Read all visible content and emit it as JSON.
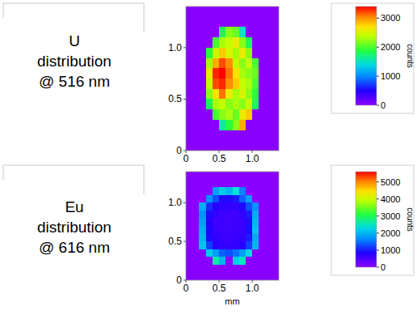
{
  "chart_data": [
    {
      "type": "heatmap",
      "title": [
        "U",
        "distribution",
        "@ 516 nm"
      ],
      "x": [
        0.05,
        0.15,
        0.25,
        0.35,
        0.45,
        0.55,
        0.65,
        0.75,
        0.85,
        0.95,
        1.05,
        1.15,
        1.25,
        1.35
      ],
      "y": [
        1.35,
        1.25,
        1.15,
        1.05,
        0.95,
        0.85,
        0.75,
        0.65,
        0.55,
        0.45,
        0.35,
        0.25,
        0.15,
        0.05
      ],
      "z": [
        [
          0,
          0,
          0,
          0,
          0,
          0,
          0,
          0,
          0,
          0,
          0,
          0,
          0,
          0
        ],
        [
          0,
          0,
          0,
          0,
          0,
          0,
          0,
          0,
          0,
          0,
          0,
          0,
          0,
          0
        ],
        [
          0,
          0,
          0,
          0,
          0,
          1800,
          2200,
          2100,
          1500,
          0,
          0,
          0,
          0,
          0
        ],
        [
          0,
          0,
          0,
          0,
          2000,
          2300,
          2400,
          2600,
          2200,
          1800,
          0,
          0,
          0,
          0
        ],
        [
          0,
          0,
          0,
          1900,
          2400,
          2800,
          2500,
          2300,
          2600,
          2200,
          0,
          0,
          0,
          0
        ],
        [
          0,
          0,
          0,
          2300,
          2900,
          3200,
          3000,
          2400,
          2200,
          2400,
          2000,
          0,
          0,
          0
        ],
        [
          0,
          0,
          0,
          2600,
          3300,
          3400,
          3100,
          2700,
          2300,
          2200,
          2100,
          0,
          0,
          0
        ],
        [
          0,
          0,
          0,
          2400,
          3200,
          3300,
          3000,
          2800,
          2400,
          2300,
          2000,
          0,
          0,
          0
        ],
        [
          0,
          0,
          0,
          2200,
          2700,
          3100,
          2600,
          2300,
          2500,
          2200,
          1900,
          0,
          0,
          0
        ],
        [
          0,
          0,
          0,
          1800,
          2300,
          2400,
          2200,
          2300,
          2200,
          2400,
          1800,
          0,
          0,
          0
        ],
        [
          0,
          0,
          0,
          0,
          2000,
          2200,
          2300,
          2100,
          2600,
          2800,
          0,
          0,
          0,
          0
        ],
        [
          0,
          0,
          0,
          0,
          0,
          1600,
          1900,
          2200,
          2900,
          0,
          0,
          0,
          0,
          0
        ],
        [
          0,
          0,
          0,
          0,
          0,
          0,
          0,
          0,
          0,
          0,
          0,
          0,
          0,
          0
        ],
        [
          0,
          0,
          0,
          0,
          0,
          0,
          0,
          0,
          0,
          0,
          0,
          0,
          0,
          0
        ]
      ],
      "xlim": [
        0,
        1.4
      ],
      "ylim": [
        0,
        1.4
      ],
      "xticks": [
        0,
        0.5,
        {
          "value": 1,
          "label": "1.0"
        }
      ],
      "yticks": [
        0,
        0.5,
        {
          "value": 1,
          "label": "1.0"
        }
      ],
      "color_range": [
        0,
        3400
      ],
      "color_ticks": [
        0,
        1000,
        2000,
        3000
      ],
      "colorbar_label": "counts"
    },
    {
      "type": "heatmap",
      "title": [
        "Eu",
        "distribution",
        "@ 616 nm"
      ],
      "x": [
        0.05,
        0.15,
        0.25,
        0.35,
        0.45,
        0.55,
        0.65,
        0.75,
        0.85,
        0.95,
        1.05,
        1.15,
        1.25,
        1.35
      ],
      "y": [
        1.35,
        1.25,
        1.15,
        1.05,
        0.95,
        0.85,
        0.75,
        0.65,
        0.55,
        0.45,
        0.35,
        0.25,
        0.15,
        0.05
      ],
      "z": [
        [
          0,
          0,
          0,
          0,
          0,
          0,
          0,
          0,
          0,
          0,
          0,
          0,
          0,
          0
        ],
        [
          0,
          0,
          0,
          0,
          0,
          0,
          0,
          0,
          0,
          0,
          0,
          0,
          0,
          0
        ],
        [
          0,
          0,
          0,
          0,
          1800,
          2200,
          2000,
          2400,
          1600,
          0,
          0,
          0,
          0,
          0
        ],
        [
          0,
          0,
          0,
          1700,
          1300,
          900,
          900,
          1000,
          1400,
          1800,
          0,
          0,
          0,
          0
        ],
        [
          0,
          0,
          1900,
          1100,
          800,
          700,
          700,
          700,
          900,
          1300,
          1700,
          0,
          0,
          0
        ],
        [
          0,
          0,
          1700,
          900,
          700,
          600,
          600,
          600,
          700,
          1000,
          1900,
          0,
          0,
          0
        ],
        [
          0,
          0,
          1800,
          800,
          600,
          600,
          550,
          600,
          650,
          900,
          2000,
          0,
          0,
          0
        ],
        [
          0,
          0,
          1900,
          850,
          650,
          600,
          600,
          600,
          650,
          900,
          2100,
          0,
          0,
          0
        ],
        [
          0,
          0,
          2000,
          900,
          700,
          650,
          600,
          650,
          700,
          1000,
          1900,
          0,
          0,
          0
        ],
        [
          0,
          0,
          2100,
          1200,
          800,
          700,
          700,
          700,
          800,
          1200,
          2000,
          0,
          0,
          0
        ],
        [
          0,
          0,
          0,
          2200,
          1800,
          1400,
          1300,
          1500,
          1800,
          2300,
          0,
          0,
          0,
          0
        ],
        [
          0,
          0,
          0,
          0,
          2600,
          2000,
          0,
          2200,
          2500,
          0,
          0,
          0,
          0,
          0
        ],
        [
          0,
          0,
          0,
          0,
          0,
          0,
          0,
          0,
          0,
          0,
          0,
          0,
          0,
          0
        ],
        [
          0,
          0,
          0,
          0,
          0,
          0,
          0,
          0,
          0,
          0,
          0,
          0,
          0,
          0
        ]
      ],
      "xlim": [
        0,
        1.4
      ],
      "ylim": [
        0,
        1.4
      ],
      "xticks": [
        0,
        0.5,
        {
          "value": 1,
          "label": "1.0"
        }
      ],
      "yticks": [
        0,
        0.5,
        {
          "value": 1,
          "label": "1.0"
        }
      ],
      "xlabel": "mm",
      "color_range": [
        0,
        5600
      ],
      "color_ticks": [
        0,
        1000,
        2000,
        3000,
        4000,
        5000
      ],
      "colorbar_label": "counts"
    }
  ]
}
